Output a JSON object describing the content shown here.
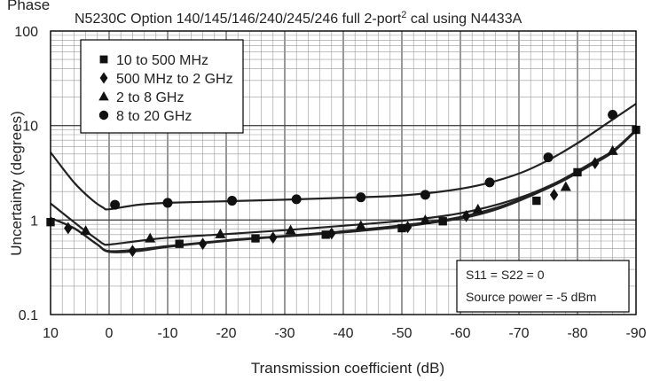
{
  "chart_data": {
    "type": "line",
    "section_label": "Phase",
    "title": "N5230C Option 140/145/146/240/245/246 full 2-port",
    "title_superscript": "2",
    "title_suffix": " cal using N4433A",
    "xlabel": "Transmission coefficient (dB)",
    "ylabel": "Uncertainty (degrees)",
    "x_scale": "linear",
    "x_reversed": true,
    "xlim": [
      10,
      -90
    ],
    "x_ticks": [
      10,
      0,
      -10,
      -20,
      -30,
      -40,
      -50,
      -60,
      -70,
      -80,
      -90
    ],
    "x_tick_labels": [
      "10",
      "0",
      "-10",
      "-20",
      "-30",
      "-40",
      "-50",
      "-60",
      "-70",
      "-80",
      "-90"
    ],
    "y_scale": "log",
    "ylim": [
      0.1,
      100
    ],
    "y_ticks": [
      0.1,
      1,
      10,
      100
    ],
    "y_tick_labels": [
      "0.1",
      "1",
      "10",
      "100"
    ],
    "grid": true,
    "legend_position": "top-left",
    "annotation_lines": [
      "S11 = S22 = 0",
      "Source power = -5 dBm"
    ],
    "series": [
      {
        "name": "10 to 500 MHz",
        "marker": "square",
        "curve": [
          [
            10,
            1.05
          ],
          [
            6,
            0.82
          ],
          [
            2,
            0.55
          ],
          [
            0,
            0.46
          ],
          [
            -5,
            0.47
          ],
          [
            -10,
            0.52
          ],
          [
            -20,
            0.6
          ],
          [
            -30,
            0.67
          ],
          [
            -40,
            0.74
          ],
          [
            -50,
            0.85
          ],
          [
            -57,
            0.97
          ],
          [
            -62,
            1.1
          ],
          [
            -67,
            1.35
          ],
          [
            -72,
            1.8
          ],
          [
            -77,
            2.5
          ],
          [
            -82,
            3.7
          ],
          [
            -86,
            5.2
          ],
          [
            -90,
            8.8
          ]
        ],
        "markers": [
          [
            10,
            0.95
          ],
          [
            -12,
            0.56
          ],
          [
            -25,
            0.64
          ],
          [
            -37,
            0.7
          ],
          [
            -50,
            0.82
          ],
          [
            -57,
            0.97
          ],
          [
            -73,
            1.6
          ],
          [
            -80,
            3.2
          ],
          [
            -90,
            9
          ]
        ]
      },
      {
        "name": "500 MHz to 2 GHz",
        "marker": "diamond",
        "curve": [
          [
            10,
            1.05
          ],
          [
            6,
            0.82
          ],
          [
            2,
            0.55
          ],
          [
            0,
            0.47
          ],
          [
            -5,
            0.49
          ],
          [
            -10,
            0.53
          ],
          [
            -20,
            0.61
          ],
          [
            -30,
            0.68
          ],
          [
            -40,
            0.76
          ],
          [
            -50,
            0.88
          ],
          [
            -58,
            1.02
          ],
          [
            -62,
            1.15
          ],
          [
            -67,
            1.4
          ],
          [
            -72,
            1.85
          ],
          [
            -77,
            2.6
          ],
          [
            -82,
            3.9
          ],
          [
            -86,
            5.4
          ],
          [
            -90,
            9
          ]
        ],
        "markers": [
          [
            7,
            0.82
          ],
          [
            -4,
            0.47
          ],
          [
            -16,
            0.56
          ],
          [
            -28,
            0.65
          ],
          [
            -38,
            0.72
          ],
          [
            -51,
            0.84
          ],
          [
            -61,
            1.1
          ],
          [
            -76,
            1.85
          ],
          [
            -83,
            4
          ]
        ]
      },
      {
        "name": "2 to 8 GHz",
        "marker": "triangle",
        "curve": [
          [
            10,
            1.5
          ],
          [
            5,
            0.85
          ],
          [
            2,
            0.62
          ],
          [
            1,
            0.56
          ],
          [
            0,
            0.55
          ],
          [
            -5,
            0.6
          ],
          [
            -10,
            0.65
          ],
          [
            -20,
            0.71
          ],
          [
            -30,
            0.78
          ],
          [
            -40,
            0.87
          ],
          [
            -50,
            0.98
          ],
          [
            -57,
            1.1
          ],
          [
            -62,
            1.25
          ],
          [
            -67,
            1.5
          ],
          [
            -72,
            1.9
          ],
          [
            -77,
            2.6
          ],
          [
            -82,
            3.8
          ],
          [
            -86,
            5.3
          ],
          [
            -90,
            9
          ]
        ],
        "markers": [
          [
            4,
            0.77
          ],
          [
            -7,
            0.64
          ],
          [
            -19,
            0.71
          ],
          [
            -31,
            0.78
          ],
          [
            -43,
            0.87
          ],
          [
            -54,
            1
          ],
          [
            -63,
            1.3
          ],
          [
            -78,
            2.25
          ],
          [
            -86,
            5.4
          ]
        ]
      },
      {
        "name": "8 to 20 GHz",
        "marker": "circle",
        "curve": [
          [
            10,
            5.2
          ],
          [
            6,
            2.5
          ],
          [
            3,
            1.65
          ],
          [
            1,
            1.35
          ],
          [
            0,
            1.3
          ],
          [
            -5,
            1.45
          ],
          [
            -10,
            1.52
          ],
          [
            -20,
            1.58
          ],
          [
            -30,
            1.64
          ],
          [
            -40,
            1.72
          ],
          [
            -50,
            1.82
          ],
          [
            -58,
            2.05
          ],
          [
            -64,
            2.4
          ],
          [
            -70,
            3.1
          ],
          [
            -75,
            4.3
          ],
          [
            -80,
            6.5
          ],
          [
            -85,
            10.5
          ],
          [
            -90,
            17
          ]
        ],
        "markers": [
          [
            -1,
            1.45
          ],
          [
            -10,
            1.52
          ],
          [
            -21,
            1.6
          ],
          [
            -32,
            1.66
          ],
          [
            -43,
            1.74
          ],
          [
            -54,
            1.85
          ],
          [
            -65,
            2.5
          ],
          [
            -75,
            4.6
          ],
          [
            -86,
            13
          ]
        ]
      }
    ]
  }
}
